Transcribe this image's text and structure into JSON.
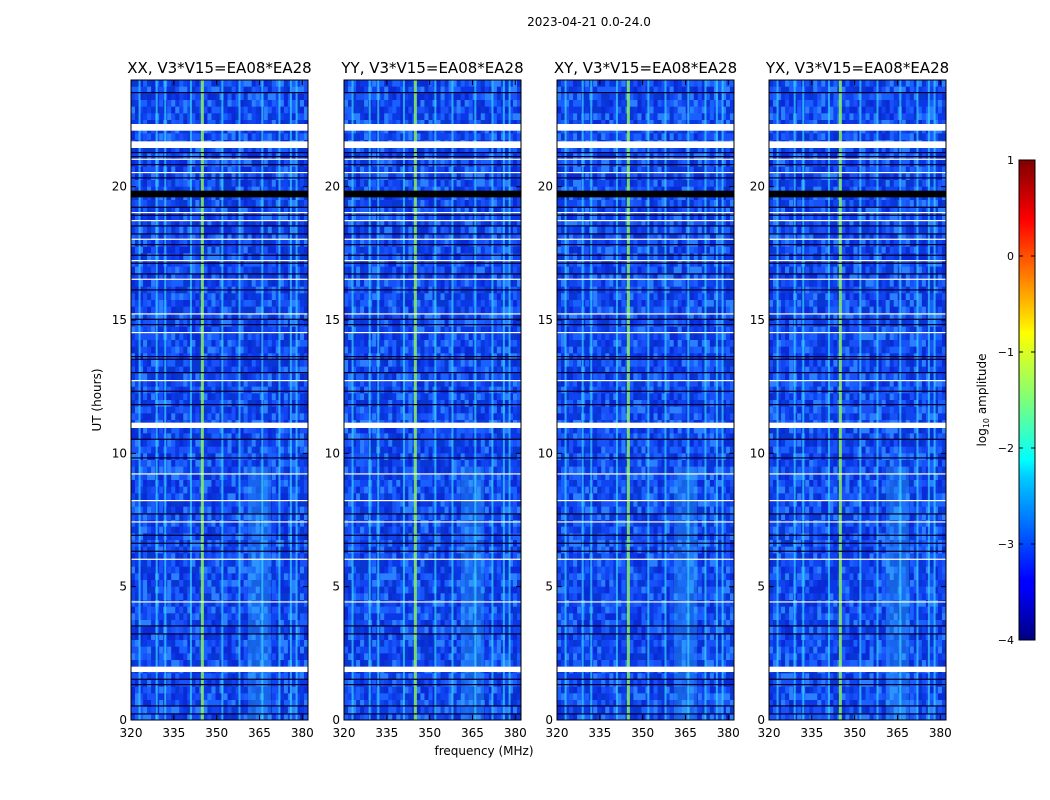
{
  "chart_data": {
    "type": "heatmap",
    "suptitle": "2023-04-21 0.0-24.0",
    "xlabel": "frequency (MHz)",
    "ylabel": "UT (hours)",
    "xlim": [
      320,
      382
    ],
    "ylim": [
      0,
      24
    ],
    "x_ticks": [
      320,
      335,
      350,
      365,
      380
    ],
    "y_ticks": [
      0,
      5,
      10,
      15,
      20
    ],
    "panels": [
      {
        "title": "XX, V3*V15=EA08*EA28",
        "baseline": "EA08*EA28",
        "polarization": "XX"
      },
      {
        "title": "YY, V3*V15=EA08*EA28",
        "baseline": "EA08*EA28",
        "polarization": "YY"
      },
      {
        "title": "XY, V3*V15=EA08*EA28",
        "baseline": "EA08*EA28",
        "polarization": "XY"
      },
      {
        "title": "YX, V3*V15=EA08*EA28",
        "baseline": "EA08*EA28",
        "polarization": "YX"
      }
    ],
    "flagged_gaps_hours": [
      [
        22.1,
        22.35
      ],
      [
        21.45,
        21.7
      ],
      [
        10.95,
        11.15
      ],
      [
        1.8,
        2.0
      ]
    ],
    "dark_band_hours": [
      19.6,
      19.85
    ],
    "rfi_lines_mhz": [
      323,
      329,
      332,
      341,
      352,
      358,
      366,
      372,
      376,
      378
    ],
    "strong_rfi_line_mhz": 345,
    "colorbar": {
      "label": "log10 amplitude",
      "label_main": "log",
      "label_sub": "10",
      "label_rest": " amplitude",
      "range": [
        -4,
        1
      ],
      "ticks": [
        "1",
        "0",
        "−1",
        "−2",
        "−3",
        "−4"
      ],
      "colormap": "jet"
    }
  }
}
